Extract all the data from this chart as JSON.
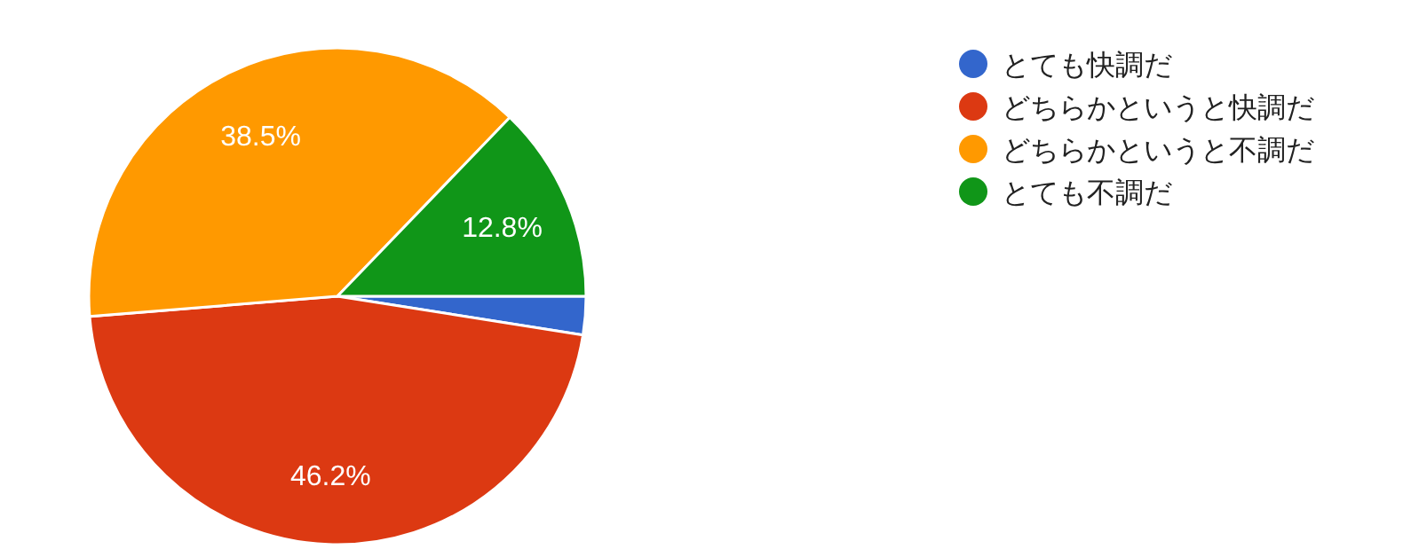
{
  "chart_data": {
    "type": "pie",
    "categories": [
      "とても快調だ",
      "どちらかというと快調だ",
      "どちらかというと不調だ",
      "とても不調だ"
    ],
    "values": [
      2.5,
      46.2,
      38.5,
      12.8
    ],
    "colors": [
      "#3366cc",
      "#dc3912",
      "#ff9900",
      "#109618"
    ],
    "value_labels": [
      null,
      "46.2%",
      "38.5%",
      "12.8%"
    ],
    "legend": "top right"
  }
}
